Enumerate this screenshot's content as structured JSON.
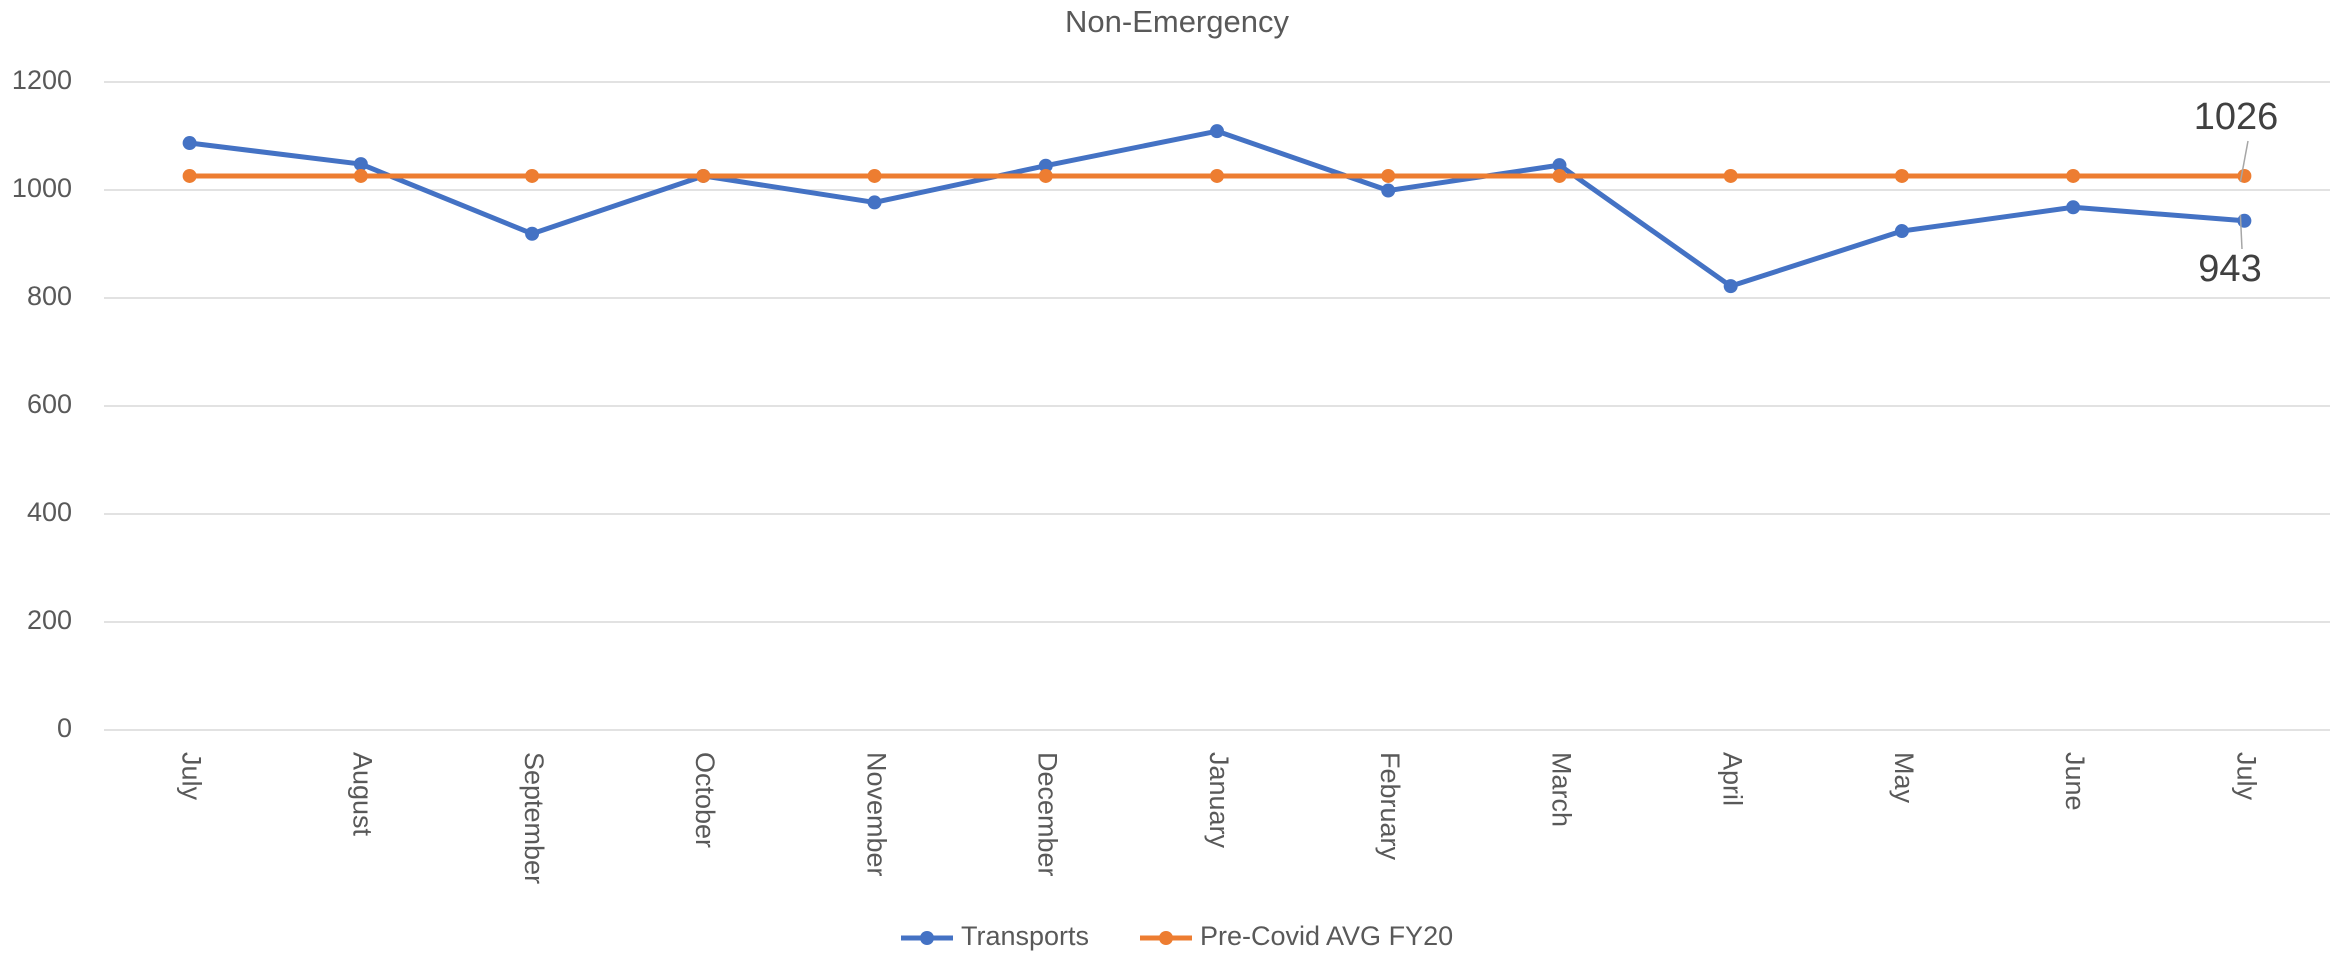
{
  "chart_data": {
    "type": "line",
    "title": "Non-Emergency",
    "categories": [
      "July",
      "August",
      "September",
      "October",
      "November",
      "December",
      "January",
      "February",
      "March",
      "April",
      "May",
      "June",
      "July"
    ],
    "series": [
      {
        "name": "Transports",
        "color": "#4472c4",
        "values": [
          1087,
          1048,
          919,
          1026,
          977,
          1045,
          1109,
          999,
          1046,
          822,
          924,
          968,
          943
        ]
      },
      {
        "name": "Pre-Covid AVG FY20",
        "color": "#ed7d31",
        "values": [
          1026,
          1026,
          1026,
          1026,
          1026,
          1026,
          1026,
          1026,
          1026,
          1026,
          1026,
          1026,
          1026
        ]
      }
    ],
    "ylim": [
      0,
      1200
    ],
    "yticks": [
      0,
      200,
      400,
      600,
      800,
      1000,
      1200
    ],
    "grid": true,
    "legend": "bottom"
  }
}
